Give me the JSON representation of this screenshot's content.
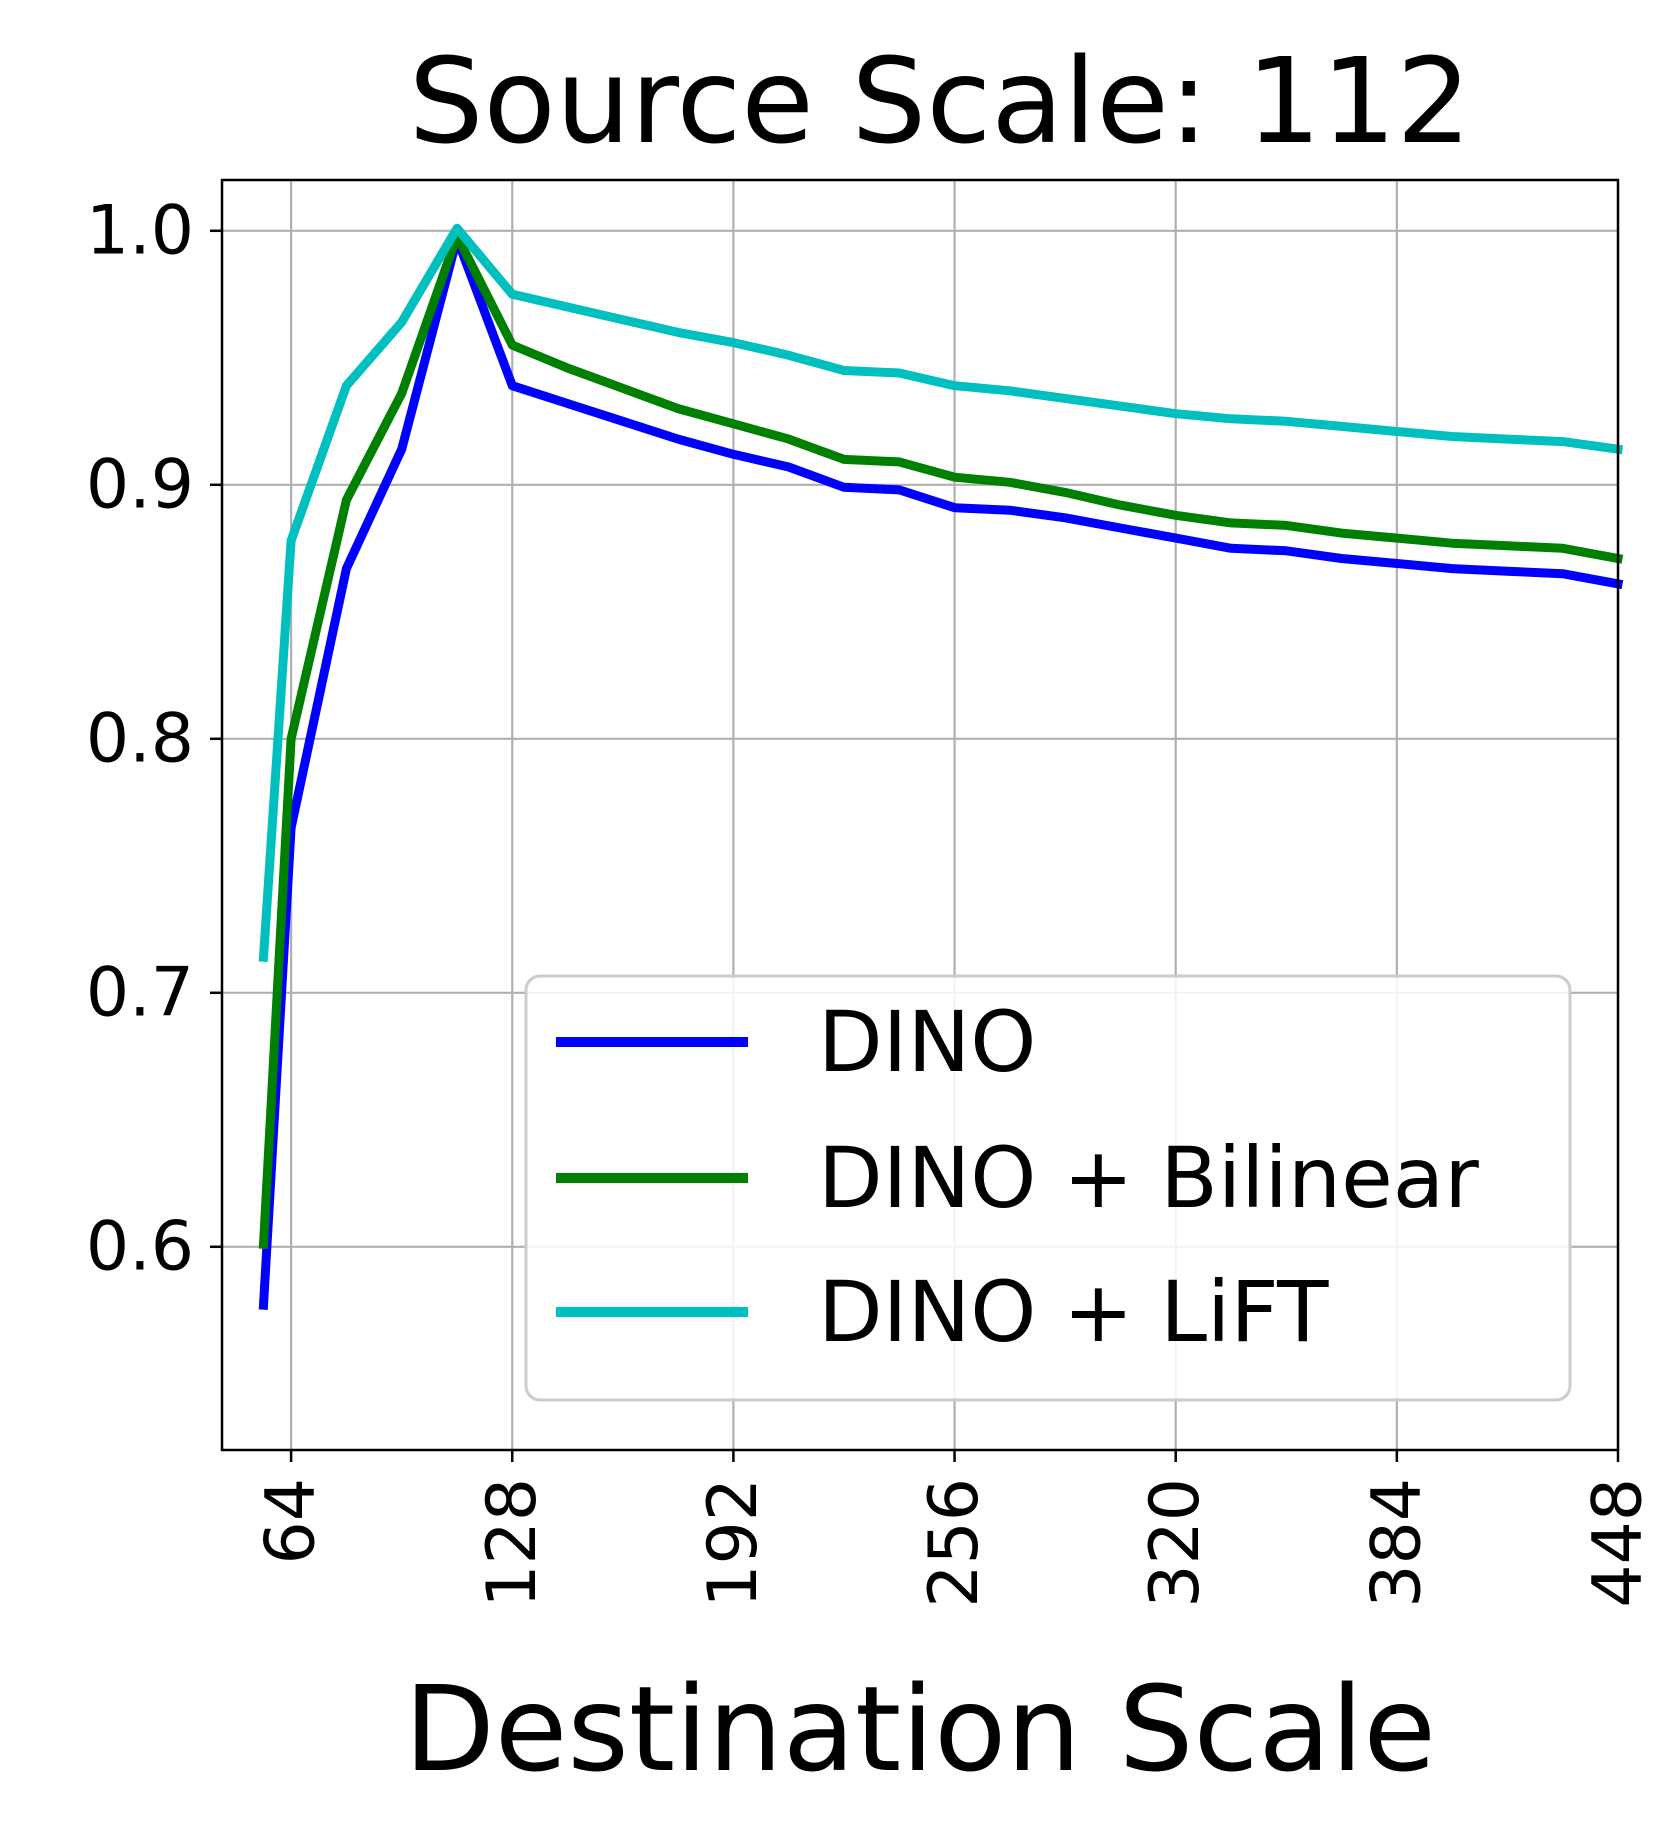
{
  "chart_data": {
    "type": "line",
    "title": "Source Scale: 112",
    "xlabel": "Destination Scale",
    "ylabel": "",
    "xlim": [
      44,
      448
    ],
    "ylim": [
      0.52,
      1.02
    ],
    "xticks": [
      64,
      128,
      192,
      256,
      320,
      384,
      448
    ],
    "yticks": [
      0.6,
      0.7,
      0.8,
      0.9,
      1.0
    ],
    "grid": true,
    "legend": "lower-right",
    "x": [
      56,
      64,
      80,
      96,
      112,
      128,
      144,
      160,
      176,
      192,
      208,
      224,
      240,
      256,
      272,
      288,
      304,
      320,
      336,
      352,
      368,
      384,
      400,
      416,
      432,
      448
    ],
    "series": [
      {
        "name": "DINO",
        "color": "#0000ff",
        "values": [
          0.577,
          0.765,
          0.867,
          0.914,
          0.997,
          0.939,
          0.932,
          0.925,
          0.918,
          0.912,
          0.907,
          0.899,
          0.898,
          0.891,
          0.89,
          0.887,
          0.883,
          0.879,
          0.875,
          0.874,
          0.871,
          0.869,
          0.867,
          0.866,
          0.865,
          0.861
        ]
      },
      {
        "name": "DINO + Bilinear",
        "color": "#008000",
        "values": [
          0.601,
          0.8,
          0.894,
          0.936,
          0.998,
          0.955,
          0.946,
          0.938,
          0.93,
          0.924,
          0.918,
          0.91,
          0.909,
          0.903,
          0.901,
          0.897,
          0.892,
          0.888,
          0.885,
          0.884,
          0.881,
          0.879,
          0.877,
          0.876,
          0.875,
          0.871
        ]
      },
      {
        "name": "DINO + LiFT",
        "color": "#00bfbf",
        "values": [
          0.714,
          0.878,
          0.939,
          0.964,
          1.001,
          0.975,
          0.97,
          0.965,
          0.96,
          0.956,
          0.951,
          0.945,
          0.944,
          0.939,
          0.937,
          0.934,
          0.931,
          0.928,
          0.926,
          0.925,
          0.923,
          0.921,
          0.919,
          0.918,
          0.917,
          0.914
        ]
      }
    ]
  }
}
